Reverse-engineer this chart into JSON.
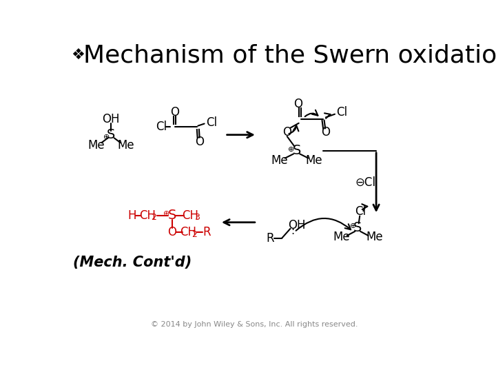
{
  "title": "Mechanism of the Swern oxidation",
  "title_bullet": "❖",
  "background_color": "#ffffff",
  "text_color": "#000000",
  "red_color": "#cc0000",
  "footer": "© 2014 by John Wiley & Sons, Inc. All rights reserved.",
  "mech_cont": "(Mech. Cont'd)",
  "title_fontsize": 26,
  "footer_fontsize": 8
}
